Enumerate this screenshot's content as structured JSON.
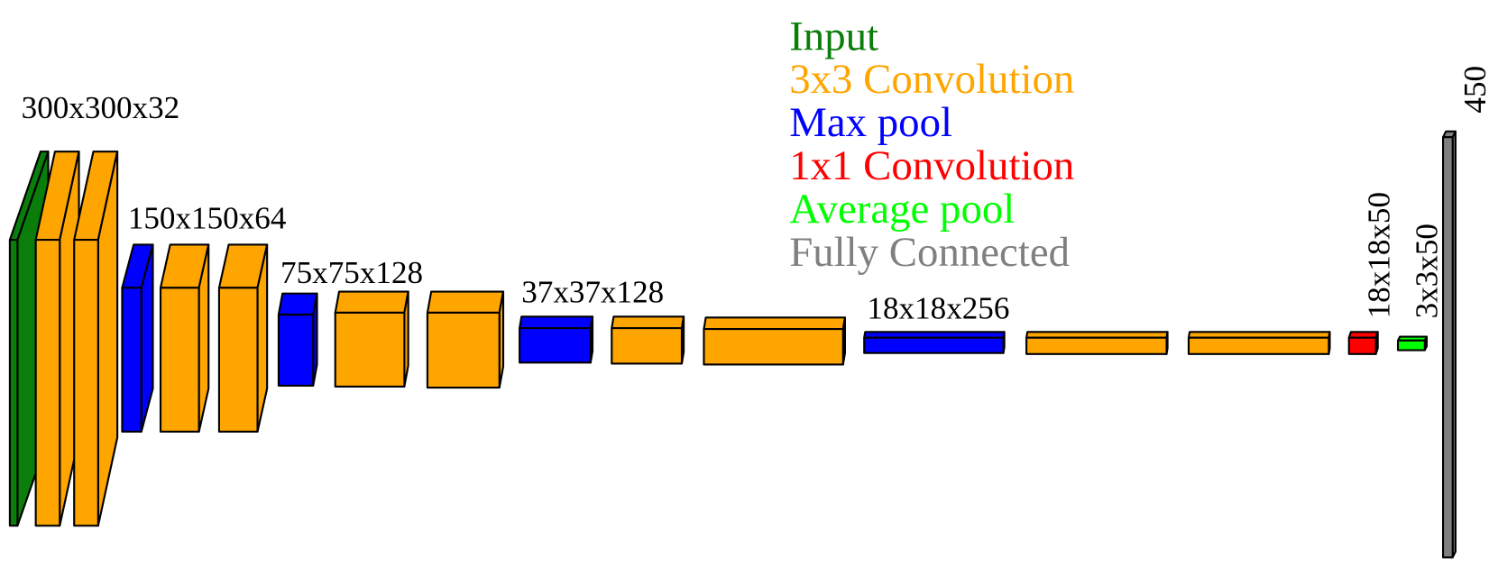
{
  "legend": [
    {
      "label": "Input",
      "color": "#0a7d0a"
    },
    {
      "label": "3x3 Convolution",
      "color": "#ffa500"
    },
    {
      "label": "Max pool",
      "color": "#0000ff"
    },
    {
      "label": "1x1 Convolution",
      "color": "#ff0000"
    },
    {
      "label": "Average pool",
      "color": "#00ff00"
    },
    {
      "label": "Fully Connected",
      "color": "#808080"
    }
  ],
  "layers": [
    {
      "label": "300x300x32"
    },
    {
      "label": "150x150x64"
    },
    {
      "label": "75x75x128"
    },
    {
      "label": "37x37x128"
    },
    {
      "label": "18x18x256"
    },
    {
      "label": "18x18x50"
    },
    {
      "label": "3x3x50"
    },
    {
      "label": "450"
    }
  ]
}
